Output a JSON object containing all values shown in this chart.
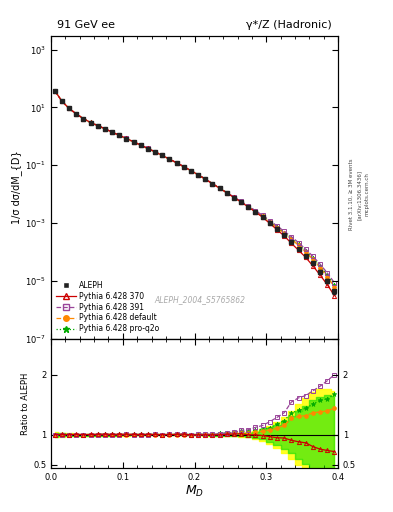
{
  "title_left": "91 GeV ee",
  "title_right": "γ*/Z (Hadronic)",
  "xlabel": "M_{D}",
  "ylabel_main": "1/σ dσ/dM_{D}",
  "ylabel_ratio": "Ratio to ALEPH",
  "watermark": "ALEPH_2004_S5765862",
  "rivet_label": "Rivet 3.1.10, ≥ 3M events",
  "arxiv_label": "[arXiv:1306.3436]",
  "mcplots_label": "mcplots.cern.ch",
  "xlim": [
    0.0,
    0.4
  ],
  "ylim_main": [
    1e-07,
    3000
  ],
  "ylim_ratio": [
    0.44,
    2.6
  ],
  "ratio_yticks": [
    0.5,
    1.0,
    2.0
  ],
  "aleph_color": "#222222",
  "p370_color": "#cc0000",
  "p391_color": "#994499",
  "pdef_color": "#ff8800",
  "pproq2o_color": "#00aa00",
  "x": [
    0.005,
    0.015,
    0.025,
    0.035,
    0.045,
    0.055,
    0.065,
    0.075,
    0.085,
    0.095,
    0.105,
    0.115,
    0.125,
    0.135,
    0.145,
    0.155,
    0.165,
    0.175,
    0.185,
    0.195,
    0.205,
    0.215,
    0.225,
    0.235,
    0.245,
    0.255,
    0.265,
    0.275,
    0.285,
    0.295,
    0.305,
    0.315,
    0.325,
    0.335,
    0.345,
    0.355,
    0.365,
    0.375,
    0.385,
    0.395
  ],
  "aleph_y": [
    38.0,
    16.5,
    9.2,
    6.0,
    4.1,
    3.0,
    2.35,
    1.82,
    1.4,
    1.08,
    0.84,
    0.645,
    0.495,
    0.378,
    0.289,
    0.218,
    0.163,
    0.121,
    0.089,
    0.065,
    0.047,
    0.033,
    0.023,
    0.016,
    0.011,
    0.0076,
    0.0052,
    0.0036,
    0.0024,
    0.0016,
    0.001,
    0.00062,
    0.00038,
    0.00022,
    0.00013,
    7.5e-05,
    4.1e-05,
    2.1e-05,
    1e-05,
    4.3e-06
  ],
  "aleph_yerr": [
    1.5,
    0.6,
    0.32,
    0.21,
    0.14,
    0.1,
    0.075,
    0.058,
    0.045,
    0.034,
    0.027,
    0.021,
    0.016,
    0.012,
    0.0093,
    0.007,
    0.0053,
    0.0039,
    0.0029,
    0.0021,
    0.0016,
    0.0011,
    0.00082,
    0.00059,
    0.00042,
    0.00029,
    0.00021,
    0.00015,
    0.0001,
    7e-05,
    4.8e-05,
    3.3e-05,
    2.2e-05,
    1.4e-05,
    9e-06,
    6e-06,
    3.8e-06,
    2.4e-06,
    1.4e-06,
    6.5e-07
  ],
  "p370_y": [
    38.2,
    16.6,
    9.25,
    6.05,
    4.12,
    3.02,
    2.37,
    1.84,
    1.41,
    1.09,
    0.848,
    0.65,
    0.498,
    0.381,
    0.291,
    0.219,
    0.164,
    0.122,
    0.09,
    0.065,
    0.047,
    0.033,
    0.023,
    0.016,
    0.0111,
    0.0077,
    0.0053,
    0.0036,
    0.0024,
    0.00158,
    0.00097,
    0.00059,
    0.00036,
    0.0002,
    0.000115,
    6.5e-05,
    3.3e-05,
    1.6e-05,
    7.4e-06,
    3.1e-06
  ],
  "p391_y": [
    38.1,
    16.55,
    9.22,
    6.02,
    4.11,
    3.01,
    2.36,
    1.83,
    1.405,
    1.085,
    0.845,
    0.648,
    0.497,
    0.38,
    0.291,
    0.219,
    0.164,
    0.122,
    0.09,
    0.065,
    0.0474,
    0.0334,
    0.0232,
    0.0163,
    0.0113,
    0.0079,
    0.0056,
    0.0039,
    0.0027,
    0.00185,
    0.00122,
    0.0008,
    0.00052,
    0.00034,
    0.00021,
    0.000124,
    7.1e-05,
    3.8e-05,
    1.9e-05,
    8.6e-06
  ],
  "pdef_y": [
    38.1,
    16.55,
    9.22,
    6.02,
    4.11,
    3.01,
    2.36,
    1.83,
    1.405,
    1.085,
    0.843,
    0.647,
    0.496,
    0.379,
    0.29,
    0.218,
    0.163,
    0.121,
    0.089,
    0.065,
    0.0472,
    0.0332,
    0.0231,
    0.0162,
    0.0112,
    0.0078,
    0.0054,
    0.0037,
    0.0025,
    0.0017,
    0.00108,
    0.00069,
    0.00044,
    0.00028,
    0.00017,
    9.9e-05,
    5.6e-05,
    2.9e-05,
    1.4e-05,
    6.2e-06
  ],
  "pproq2o_y": [
    38.2,
    16.58,
    9.23,
    6.03,
    4.12,
    3.015,
    2.365,
    1.835,
    1.408,
    1.087,
    0.846,
    0.649,
    0.498,
    0.381,
    0.291,
    0.219,
    0.164,
    0.122,
    0.09,
    0.065,
    0.0475,
    0.0335,
    0.0233,
    0.0164,
    0.0114,
    0.0079,
    0.0055,
    0.0038,
    0.0026,
    0.00175,
    0.00112,
    0.00073,
    0.00047,
    0.0003,
    0.000183,
    0.000108,
    6.2e-05,
    3.3e-05,
    1.6e-05,
    7.2e-06
  ],
  "band_yellow_lo": [
    0.96,
    0.97,
    0.975,
    0.978,
    0.98,
    0.982,
    0.984,
    0.985,
    0.986,
    0.987,
    0.988,
    0.989,
    0.99,
    0.991,
    0.991,
    0.991,
    0.991,
    0.991,
    0.99,
    0.99,
    0.989,
    0.988,
    0.986,
    0.984,
    0.981,
    0.977,
    0.97,
    0.958,
    0.938,
    0.905,
    0.855,
    0.785,
    0.7,
    0.6,
    0.49,
    0.38,
    0.295,
    0.245,
    0.235,
    0.27
  ],
  "band_yellow_hi": [
    1.04,
    1.03,
    1.025,
    1.022,
    1.02,
    1.018,
    1.016,
    1.015,
    1.014,
    1.013,
    1.012,
    1.011,
    1.01,
    1.009,
    1.009,
    1.009,
    1.009,
    1.009,
    1.01,
    1.01,
    1.011,
    1.012,
    1.014,
    1.016,
    1.019,
    1.023,
    1.03,
    1.042,
    1.062,
    1.095,
    1.145,
    1.215,
    1.3,
    1.4,
    1.51,
    1.62,
    1.705,
    1.755,
    1.765,
    1.73
  ],
  "band_green_lo": [
    0.97,
    0.975,
    0.98,
    0.982,
    0.984,
    0.985,
    0.986,
    0.987,
    0.988,
    0.989,
    0.99,
    0.99,
    0.991,
    0.992,
    0.992,
    0.992,
    0.992,
    0.992,
    0.991,
    0.991,
    0.99,
    0.989,
    0.988,
    0.986,
    0.984,
    0.981,
    0.976,
    0.967,
    0.951,
    0.926,
    0.887,
    0.834,
    0.768,
    0.692,
    0.605,
    0.512,
    0.428,
    0.365,
    0.335,
    0.35
  ],
  "band_green_hi": [
    1.03,
    1.025,
    1.02,
    1.018,
    1.016,
    1.015,
    1.014,
    1.013,
    1.012,
    1.011,
    1.01,
    1.01,
    1.009,
    1.008,
    1.008,
    1.008,
    1.008,
    1.008,
    1.009,
    1.009,
    1.01,
    1.011,
    1.012,
    1.014,
    1.016,
    1.019,
    1.024,
    1.033,
    1.049,
    1.074,
    1.113,
    1.166,
    1.232,
    1.308,
    1.395,
    1.488,
    1.572,
    1.635,
    1.665,
    1.65
  ]
}
